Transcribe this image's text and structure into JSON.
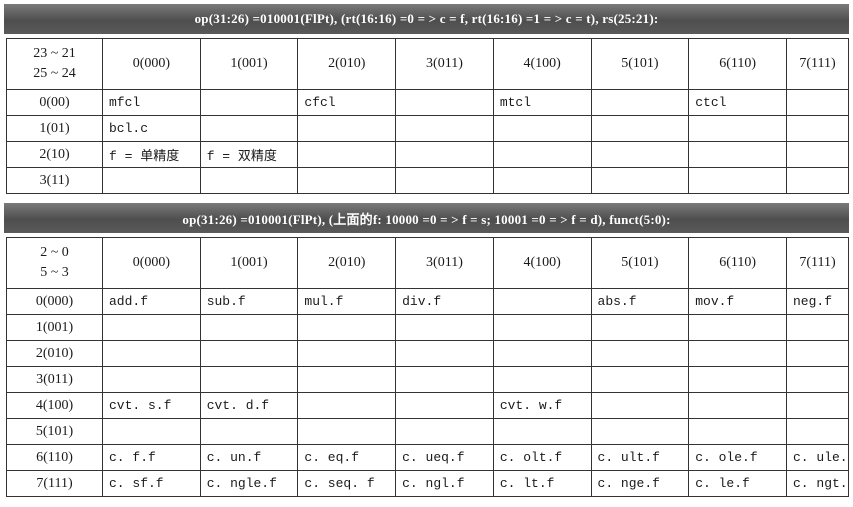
{
  "table1": {
    "banner": "op(31:26) =010001(FlPt), (rt(16:16) =0 = > c = f, rt(16:16) =1 = > c = t), rs(25:21):",
    "corner_top": "23 ~ 21",
    "corner_bottom": "25 ~ 24",
    "columns": [
      "0(000)",
      "1(001)",
      "2(010)",
      "3(011)",
      "4(100)",
      "5(101)",
      "6(110)",
      "7(111)"
    ],
    "rows": [
      {
        "label": "0(00)",
        "cells": [
          "mfcl",
          "",
          "cfcl",
          "",
          "mtcl",
          "",
          "ctcl",
          ""
        ]
      },
      {
        "label": "1(01)",
        "cells": [
          "bcl.c",
          "",
          "",
          "",
          "",
          "",
          "",
          ""
        ]
      },
      {
        "label": "2(10)",
        "cells": [
          "f = 单精度",
          "f = 双精度",
          "",
          "",
          "",
          "",
          "",
          ""
        ]
      },
      {
        "label": "3(11)",
        "cells": [
          "",
          "",
          "",
          "",
          "",
          "",
          "",
          ""
        ]
      }
    ]
  },
  "table2": {
    "banner": "op(31:26) =010001(FlPt), (上面的f: 10000 =0 = > f = s; 10001 =0 = > f = d), funct(5:0):",
    "corner_top": "2 ~ 0",
    "corner_bottom": "5 ~ 3",
    "columns": [
      "0(000)",
      "1(001)",
      "2(010)",
      "3(011)",
      "4(100)",
      "5(101)",
      "6(110)",
      "7(111)"
    ],
    "rows": [
      {
        "label": "0(000)",
        "cells": [
          "add.f",
          "sub.f",
          "mul.f",
          "div.f",
          "",
          "abs.f",
          "mov.f",
          "neg.f"
        ]
      },
      {
        "label": "1(001)",
        "cells": [
          "",
          "",
          "",
          "",
          "",
          "",
          "",
          ""
        ]
      },
      {
        "label": "2(010)",
        "cells": [
          "",
          "",
          "",
          "",
          "",
          "",
          "",
          ""
        ]
      },
      {
        "label": "3(011)",
        "cells": [
          "",
          "",
          "",
          "",
          "",
          "",
          "",
          ""
        ]
      },
      {
        "label": "4(100)",
        "cells": [
          "cvt. s.f",
          "cvt. d.f",
          "",
          "",
          "cvt. w.f",
          "",
          "",
          ""
        ]
      },
      {
        "label": "5(101)",
        "cells": [
          "",
          "",
          "",
          "",
          "",
          "",
          "",
          ""
        ]
      },
      {
        "label": "6(110)",
        "cells": [
          "c. f.f",
          "c. un.f",
          "c. eq.f",
          "c. ueq.f",
          "c. olt.f",
          "c. ult.f",
          "c. ole.f",
          "c. ule.f"
        ]
      },
      {
        "label": "7(111)",
        "cells": [
          "c. sf.f",
          "c. ngle.f",
          "c. seq. f",
          "c. ngl.f",
          "c. lt.f",
          "c. nge.f",
          "c. le.f",
          "c. ngt.f"
        ]
      }
    ]
  }
}
